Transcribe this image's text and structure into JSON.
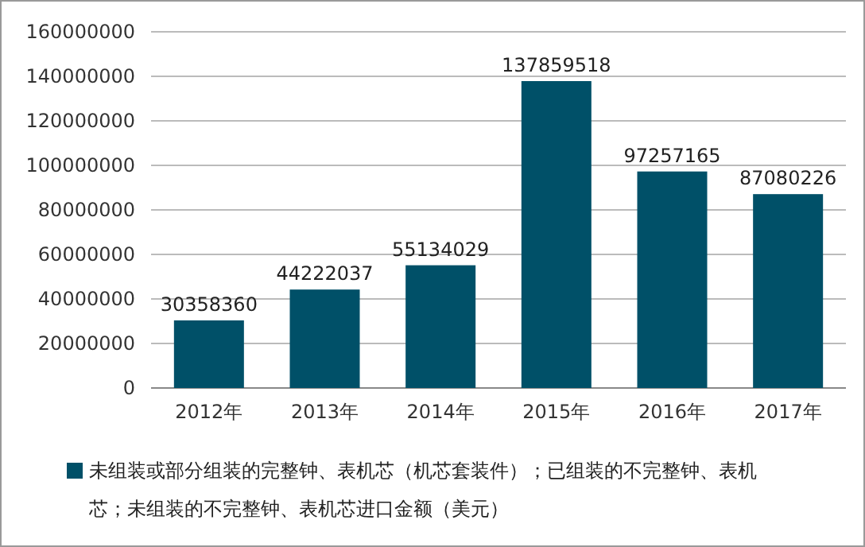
{
  "chart_data": {
    "type": "bar",
    "categories": [
      "2012年",
      "2013年",
      "2014年",
      "2015年",
      "2016年",
      "2017年"
    ],
    "series": [
      {
        "name": "未组装或部分组装的完整钟、表机芯（机芯套装件）；已组装的不完整钟、表机芯；未组装的不完整钟、表机芯进口金额（美元）",
        "color": "#005068",
        "values": [
          30358360,
          44222037,
          55134029,
          137859518,
          97257165,
          87080226
        ]
      }
    ],
    "ylim": [
      0,
      160000000
    ],
    "yticks": [
      0,
      20000000,
      40000000,
      60000000,
      80000000,
      100000000,
      120000000,
      140000000,
      160000000
    ],
    "grid": "y",
    "legend": "bottom",
    "data_labels": true
  }
}
